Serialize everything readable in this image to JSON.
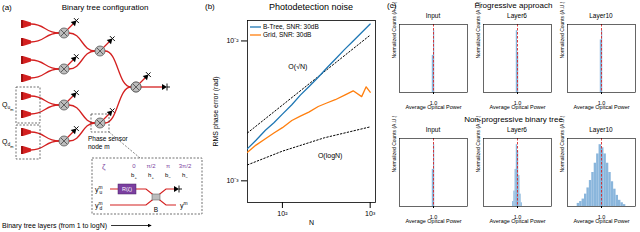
{
  "panel_a": {
    "label": "(a)",
    "title": "Binary tree configuration",
    "q_up": {
      "text": "Q",
      "sub": "u",
      "subsub": "m"
    },
    "q_down": {
      "text": "Q",
      "sub": "d",
      "subsub": "m"
    },
    "node_label": [
      "Phase sensor",
      "node m"
    ],
    "axis_label": "Binary tree layers (from 1 to logN)",
    "inset": {
      "phase_symbol": "ζ",
      "phases": [
        "0",
        "π/2",
        "π",
        "3π/2"
      ],
      "outputs": [
        {
          "text": "b",
          "sub": "+"
        },
        {
          "text": "h",
          "sub": "+"
        },
        {
          "text": "b",
          "sub": "−"
        },
        {
          "text": "h",
          "sub": "−"
        }
      ],
      "input_up": {
        "text": "y",
        "sub": "u",
        "sup": "m"
      },
      "input_down": {
        "text": "y",
        "sub": "d",
        "sup": "m"
      },
      "rotator": "R(ζ)",
      "coupler": "B",
      "output": {
        "text": "y",
        "sup": "m"
      }
    }
  },
  "panel_c": {
    "label": "(c)"
  },
  "chart_data": [
    {
      "type": "line",
      "label": "(b)",
      "title": "Photodetection noise",
      "x_label": "N",
      "y_label": "RMS phase error (rad)",
      "log": true,
      "grid": false,
      "legend": "top-left",
      "xlim": [
        40,
        1150
      ],
      "xticks": [
        {
          "value": 100,
          "label": "10²"
        },
        {
          "value": 1000,
          "label": "10³"
        }
      ],
      "ylim": [
        0.0007,
        0.014
      ],
      "yticks": [
        {
          "value": 0.001,
          "label": "10⁻³"
        },
        {
          "value": 0.01,
          "label": "10⁻²"
        }
      ],
      "series": [
        {
          "name": "B-Tree, SNR: 30dB",
          "color": "#1f77b4",
          "x": [
            40,
            50,
            64,
            80,
            100,
            128,
            160,
            200,
            256,
            320,
            400,
            512,
            640,
            800,
            1000
          ],
          "values": [
            0.0017,
            0.00195,
            0.0023,
            0.0026,
            0.003,
            0.0035,
            0.0041,
            0.0047,
            0.0055,
            0.0064,
            0.0074,
            0.0087,
            0.01,
            0.0115,
            0.0132
          ]
        },
        {
          "name": "Grid, SNR: 30dB",
          "color": "#ff7f0e",
          "x": [
            40,
            50,
            64,
            80,
            100,
            128,
            160,
            200,
            256,
            320,
            400,
            512,
            640,
            800,
            900,
            1000
          ],
          "values": [
            0.0016,
            0.0018,
            0.002,
            0.0022,
            0.0024,
            0.0027,
            0.0029,
            0.0031,
            0.0034,
            0.0036,
            0.0038,
            0.0041,
            0.0044,
            0.004,
            0.0047,
            0.0043
          ]
        }
      ],
      "fits": [
        {
          "x": [
            40,
            1000
          ],
          "values": [
            0.0022,
            0.011
          ],
          "color": "#000000",
          "line_style": "dotted"
        },
        {
          "x": [
            40,
            100,
            300,
            1000
          ],
          "values": [
            0.0013,
            0.00163,
            0.00203,
            0.00243
          ],
          "color": "#000000",
          "line_style": "dotted"
        }
      ],
      "annotations": [
        {
          "text": "O(√N)",
          "x": 150,
          "y": 0.0065
        },
        {
          "text": "O(logN)",
          "x": 350,
          "y": 0.0015
        }
      ]
    },
    {
      "type": "histogram",
      "group": "Progressive approach",
      "title": "Input",
      "x_label": "Average Opitcal Power",
      "y_label": "Normalized Counts (A.U.)",
      "bins": [
        0.975,
        1.0,
        1.025
      ],
      "counts": [
        0.6,
        1.0
      ],
      "color": "#8ab6dc",
      "mean": {
        "value": 1.0,
        "color": "#d62728",
        "line_style": "dashed"
      },
      "xlim": [
        0.3,
        1.7
      ],
      "xticks": [
        {
          "value": 1,
          "label": "1.0"
        }
      ],
      "ylim": [
        0,
        1.1
      ],
      "tick_labels": "x"
    },
    {
      "type": "histogram",
      "group": "Progressive approach",
      "title": "Layer6",
      "x_label": "Average Opitcal Power",
      "y_label": "Normalized Counts (A.U.)",
      "bins": [
        0.975,
        1.0,
        1.025
      ],
      "counts": [
        1.0,
        0.65
      ],
      "color": "#8ab6dc",
      "mean": {
        "value": 1.0,
        "color": "#d62728",
        "line_style": "dashed"
      },
      "xlim": [
        0.3,
        1.7
      ],
      "xticks": [
        {
          "value": 1,
          "label": "1.0"
        }
      ],
      "ylim": [
        0,
        1.1
      ],
      "tick_labels": "x"
    },
    {
      "type": "histogram",
      "group": "Progressive approach",
      "title": "Layer10",
      "x_label": "Average Opitcal Power",
      "y_label": "Normalized Counts (A.U.)",
      "bins": [
        0.975,
        1.0,
        1.025
      ],
      "counts": [
        0.85,
        1.0
      ],
      "color": "#8ab6dc",
      "mean": {
        "value": 1.0,
        "color": "#d62728",
        "line_style": "dashed"
      },
      "xlim": [
        0.3,
        1.7
      ],
      "xticks": [
        {
          "value": 1,
          "label": "1.0"
        }
      ],
      "ylim": [
        0,
        1.1
      ],
      "tick_labels": "x"
    },
    {
      "type": "histogram",
      "group": "Non-progressive binary tree",
      "title": "Input",
      "x_label": "Average Opitcal Power",
      "y_label": "Normalized Counts (A.U.)",
      "bins": [
        0.975,
        1.0,
        1.025
      ],
      "counts": [
        0.6,
        1.0
      ],
      "color": "#8ab6dc",
      "mean": {
        "value": 1.0,
        "color": "#d62728",
        "line_style": "dashed"
      },
      "xlim": [
        0.3,
        1.7
      ],
      "xticks": [
        {
          "value": 1,
          "label": "1.0"
        }
      ],
      "ylim": [
        0,
        1.1
      ],
      "tick_labels": "x"
    },
    {
      "type": "histogram",
      "group": "Non-progressive binary tree",
      "title": "Layer6",
      "x_label": "Average Opitcal Power",
      "y_label": "Normalized Counts (A.U.)",
      "bins": [
        0.9,
        0.925,
        0.95,
        0.975,
        1.0,
        1.025,
        1.05,
        1.075,
        1.1
      ],
      "counts": [
        0.08,
        0.25,
        0.6,
        1.0,
        0.9,
        0.5,
        0.2,
        0.06
      ],
      "color": "#8ab6dc",
      "mean": {
        "value": 1.0,
        "color": "#d62728",
        "line_style": "dashed"
      },
      "xlim": [
        0.3,
        1.7
      ],
      "xticks": [
        {
          "value": 1,
          "label": "1.0"
        }
      ],
      "ylim": [
        0,
        1.1
      ],
      "tick_labels": "x"
    },
    {
      "type": "histogram",
      "group": "Non-progressive binary tree",
      "title": "Layer10",
      "x_label": "Average Opitcal Power",
      "y_label": "Normalized Counts (A.U.)",
      "bins": [
        0.5,
        0.55,
        0.6,
        0.65,
        0.7,
        0.75,
        0.8,
        0.85,
        0.9,
        0.95,
        1.0,
        1.05,
        1.1,
        1.15,
        1.2,
        1.25,
        1.3,
        1.35,
        1.4,
        1.45,
        1.5
      ],
      "counts": [
        0.05,
        0.08,
        0.12,
        0.2,
        0.3,
        0.42,
        0.55,
        0.7,
        0.85,
        1.0,
        0.95,
        0.85,
        0.7,
        0.55,
        0.4,
        0.28,
        0.18,
        0.1,
        0.06,
        0.03
      ],
      "color": "#8ab6dc",
      "mean": {
        "value": 1.0,
        "color": "#d62728",
        "line_style": "dashed"
      },
      "xlim": [
        0.3,
        1.7
      ],
      "xticks": [
        {
          "value": 1,
          "label": "1.0"
        }
      ],
      "ylim": [
        0,
        1.1
      ],
      "tick_labels": "x"
    }
  ]
}
